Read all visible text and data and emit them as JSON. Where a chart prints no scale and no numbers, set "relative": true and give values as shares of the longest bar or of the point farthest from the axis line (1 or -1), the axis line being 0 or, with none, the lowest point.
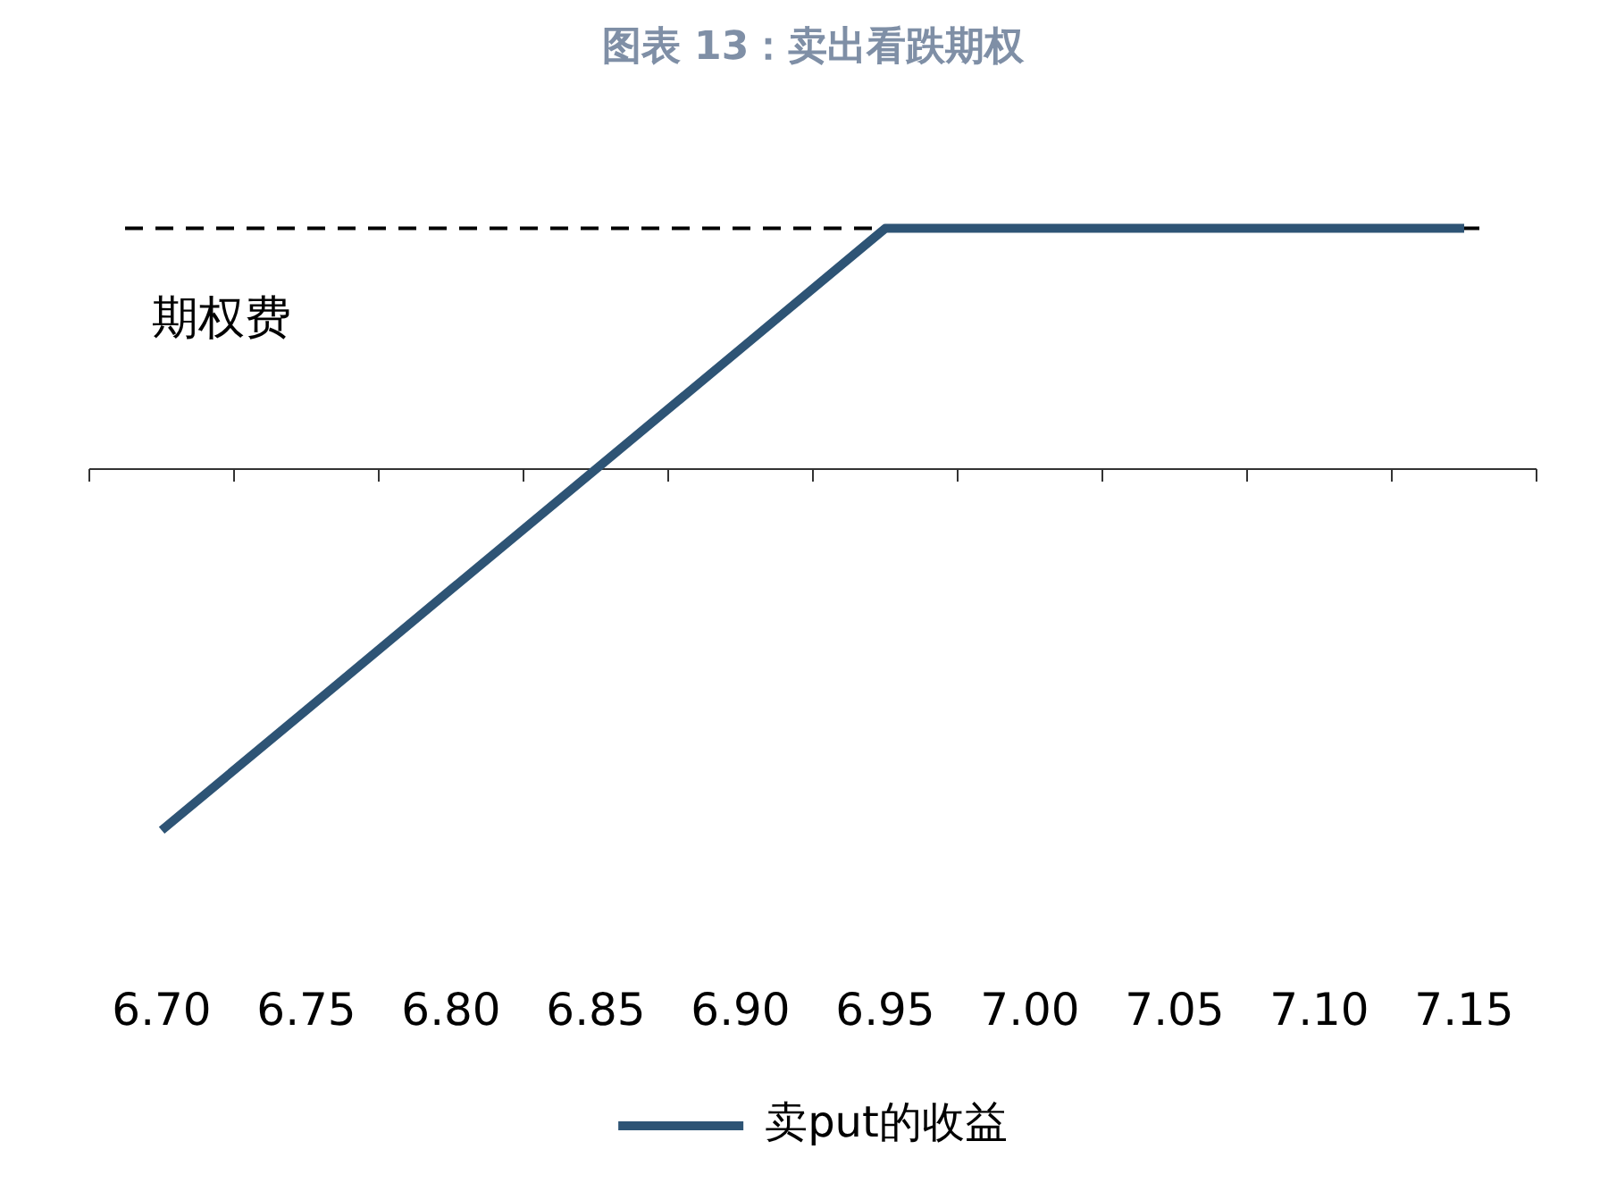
{
  "chart_data": {
    "type": "line",
    "title": "图表 13：卖出看跌期权",
    "relative": true,
    "categories": [
      "6.70",
      "6.75",
      "6.80",
      "6.85",
      "6.90",
      "6.95",
      "7.00",
      "7.05",
      "7.10",
      "7.15"
    ],
    "series": [
      {
        "name": "卖put的收益",
        "color": "#2e5475",
        "values": [
          -1,
          -0.667,
          -0.333,
          0,
          0.333,
          0.667,
          0.667,
          0.667,
          0.667,
          0.667
        ]
      }
    ],
    "ref_lines": [
      {
        "axis": "y",
        "value": 0.667,
        "label": "期权费",
        "color": "#000000",
        "line_style": "dashed"
      }
    ],
    "legend": "bottom",
    "grid": false,
    "marker": "none",
    "line_style": "solid"
  }
}
